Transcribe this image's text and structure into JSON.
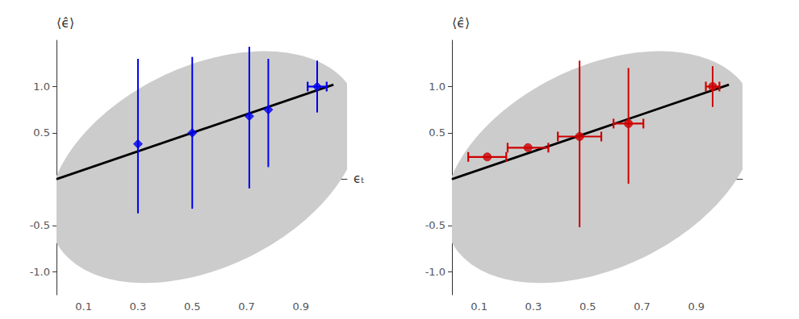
{
  "chart_data": [
    {
      "type": "scatter",
      "ylabel": "⟨ϵ̂⟩",
      "xlabel": "ϵₜ",
      "xlim": [
        0.0,
        1.07
      ],
      "ylim": [
        -1.25,
        1.5
      ],
      "xticks": [
        0.1,
        0.3,
        0.5,
        0.7,
        0.9
      ],
      "yticks": [
        {
          "value": -1.0,
          "label": "-1.0"
        },
        -0.5,
        0.5,
        {
          "value": 1.0,
          "label": "1.0"
        }
      ],
      "grid": false,
      "x": [
        0.3,
        0.5,
        0.71,
        0.78,
        0.96
      ],
      "values": [
        0.38,
        0.5,
        0.68,
        0.75,
        1.0
      ],
      "xerr": [
        0.0,
        0.0,
        0.0,
        0.0,
        0.035
      ],
      "yerr_lo": [
        0.75,
        0.82,
        0.78,
        0.62,
        0.28
      ],
      "yerr_hi": [
        0.92,
        0.82,
        0.75,
        0.55,
        0.28
      ],
      "color": "#0000ee",
      "marker": "diamond",
      "line": {
        "x": [
          0.0,
          1.02
        ],
        "y": [
          0.0,
          1.02
        ],
        "color": "#000000"
      },
      "ellipse": {
        "cx": 0.545,
        "cy": 0.13,
        "width": 1.04,
        "height": 2.55,
        "angle": -12,
        "color": "#cccccc"
      }
    },
    {
      "type": "scatter",
      "ylabel": "⟨ϵ̂⟩",
      "xlim": [
        0.0,
        1.07
      ],
      "ylim": [
        -1.25,
        1.5
      ],
      "xticks": [
        0.1,
        0.3,
        0.5,
        0.7,
        0.9
      ],
      "yticks": [
        {
          "value": -1.0,
          "label": "-1.0"
        },
        -0.5,
        0.5,
        {
          "value": 1.0,
          "label": "1.0"
        }
      ],
      "grid": false,
      "x": [
        0.13,
        0.28,
        0.47,
        0.65,
        0.96
      ],
      "values": [
        0.24,
        0.34,
        0.46,
        0.6,
        1.0
      ],
      "xerr": [
        0.07,
        0.075,
        0.08,
        0.055,
        0.025
      ],
      "yerr_lo": [
        0.0,
        0.0,
        0.98,
        0.65,
        0.22
      ],
      "yerr_hi": [
        0.0,
        0.0,
        0.82,
        0.6,
        0.22
      ],
      "color": "#cc0000",
      "marker": "circle",
      "line": {
        "x": [
          0.0,
          1.02
        ],
        "y": [
          0.0,
          1.02
        ],
        "color": "#000000"
      },
      "ellipse": {
        "cx": 0.545,
        "cy": 0.13,
        "width": 1.04,
        "height": 2.55,
        "angle": -12,
        "color": "#cccccc"
      }
    }
  ]
}
